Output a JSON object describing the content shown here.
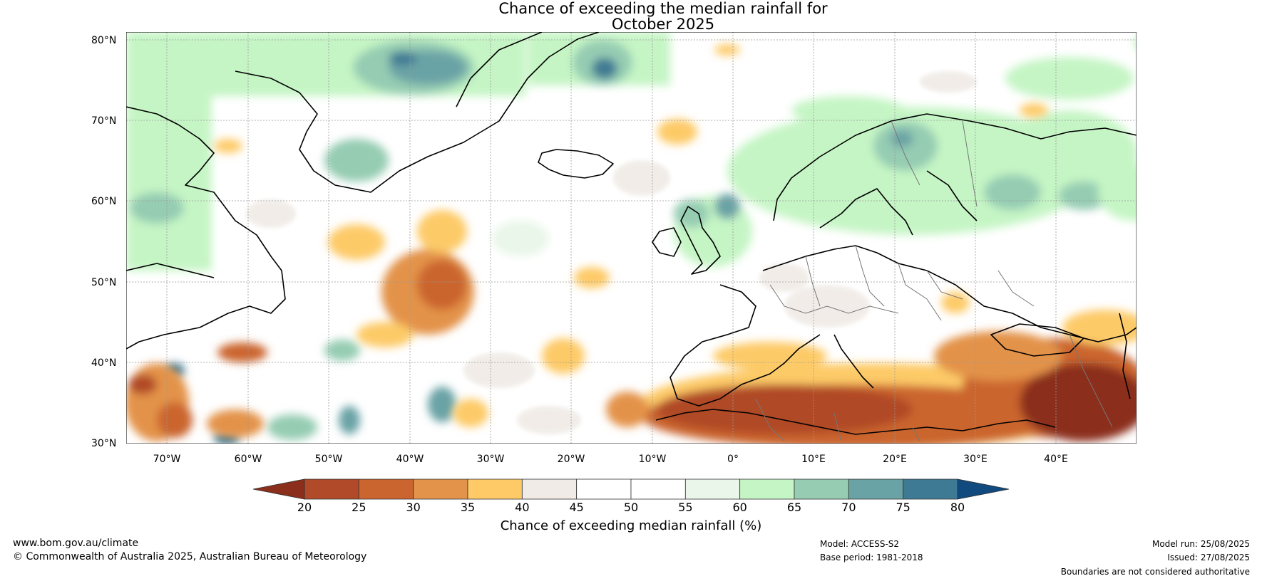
{
  "title_line1": "Chance of exceeding the median rainfall for",
  "title_line2": "October 2025",
  "lat_labels": [
    "80°N",
    "70°N",
    "60°N",
    "50°N",
    "40°N",
    "30°N"
  ],
  "lon_labels": [
    "70°W",
    "60°W",
    "50°W",
    "40°W",
    "30°W",
    "20°W",
    "10°W",
    "0°",
    "10°E",
    "20°E",
    "30°E",
    "40°E"
  ],
  "colorbar": {
    "title": "Chance of exceeding median rainfall (%)",
    "ticks": [
      "20",
      "25",
      "30",
      "35",
      "40",
      "45",
      "50",
      "55",
      "60",
      "65",
      "70",
      "75",
      "80"
    ],
    "colors": [
      "#8b2f1c",
      "#b04a28",
      "#cb652f",
      "#e3934a",
      "#fdca67",
      "#f0ebe6",
      "#ffffff",
      "#ffffff",
      "#e9f6e9",
      "#c5f5c5",
      "#95ccb2",
      "#6aa3a6",
      "#3f7a94",
      "#104a7f"
    ]
  },
  "footer": {
    "url": "www.bom.gov.au/climate",
    "copyright": "© Commonwealth of Australia 2025, Australian Bureau of Meteorology",
    "model": "Model: ACCESS-S2",
    "base_period": "Base period: 1981-2018",
    "model_run": "Model run: 25/08/2025",
    "issued": "Issued: 27/08/2025",
    "boundaries": "Boundaries are not considered authoritative"
  }
}
